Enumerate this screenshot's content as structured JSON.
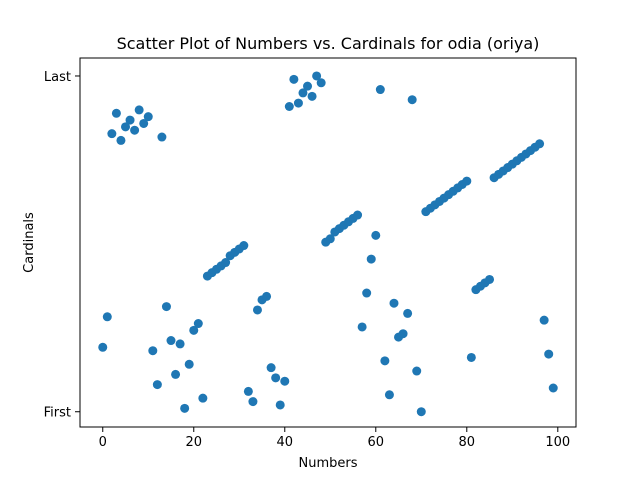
{
  "chart_data": {
    "type": "scatter",
    "title": "Scatter Plot of Numbers vs. Cardinals for odia (oriya)",
    "xlabel": "Numbers",
    "ylabel": "Cardinals",
    "xlim": [
      -5,
      104
    ],
    "ylim": [
      -4.5,
      104.3
    ],
    "x_ticks": [
      0,
      20,
      40,
      60,
      80,
      100
    ],
    "y_ticks": [
      {
        "value": 0,
        "label": "First"
      },
      {
        "value": 99,
        "label": "Last"
      }
    ],
    "grid": false,
    "color": "#1f77b4",
    "points": [
      {
        "x": 0,
        "y": 19
      },
      {
        "x": 1,
        "y": 28
      },
      {
        "x": 2,
        "y": 82
      },
      {
        "x": 3,
        "y": 88
      },
      {
        "x": 4,
        "y": 80
      },
      {
        "x": 5,
        "y": 84
      },
      {
        "x": 6,
        "y": 86
      },
      {
        "x": 7,
        "y": 83
      },
      {
        "x": 8,
        "y": 89
      },
      {
        "x": 9,
        "y": 85
      },
      {
        "x": 10,
        "y": 87
      },
      {
        "x": 11,
        "y": 18
      },
      {
        "x": 12,
        "y": 8
      },
      {
        "x": 13,
        "y": 81
      },
      {
        "x": 14,
        "y": 31
      },
      {
        "x": 15,
        "y": 21
      },
      {
        "x": 16,
        "y": 11
      },
      {
        "x": 17,
        "y": 20
      },
      {
        "x": 18,
        "y": 1
      },
      {
        "x": 19,
        "y": 14
      },
      {
        "x": 20,
        "y": 24
      },
      {
        "x": 21,
        "y": 26
      },
      {
        "x": 22,
        "y": 4
      },
      {
        "x": 23,
        "y": 40
      },
      {
        "x": 24,
        "y": 41
      },
      {
        "x": 25,
        "y": 42
      },
      {
        "x": 26,
        "y": 43
      },
      {
        "x": 27,
        "y": 44
      },
      {
        "x": 28,
        "y": 46
      },
      {
        "x": 29,
        "y": 47
      },
      {
        "x": 30,
        "y": 48
      },
      {
        "x": 31,
        "y": 49
      },
      {
        "x": 32,
        "y": 6
      },
      {
        "x": 33,
        "y": 3
      },
      {
        "x": 34,
        "y": 30
      },
      {
        "x": 35,
        "y": 33
      },
      {
        "x": 36,
        "y": 34
      },
      {
        "x": 37,
        "y": 13
      },
      {
        "x": 38,
        "y": 10
      },
      {
        "x": 39,
        "y": 2
      },
      {
        "x": 40,
        "y": 9
      },
      {
        "x": 41,
        "y": 90
      },
      {
        "x": 42,
        "y": 98
      },
      {
        "x": 43,
        "y": 91
      },
      {
        "x": 44,
        "y": 94
      },
      {
        "x": 45,
        "y": 96
      },
      {
        "x": 46,
        "y": 93
      },
      {
        "x": 47,
        "y": 99
      },
      {
        "x": 48,
        "y": 97
      },
      {
        "x": 49,
        "y": 50
      },
      {
        "x": 50,
        "y": 51
      },
      {
        "x": 51,
        "y": 53
      },
      {
        "x": 52,
        "y": 54
      },
      {
        "x": 53,
        "y": 55
      },
      {
        "x": 54,
        "y": 56
      },
      {
        "x": 55,
        "y": 57
      },
      {
        "x": 56,
        "y": 58
      },
      {
        "x": 57,
        "y": 25
      },
      {
        "x": 58,
        "y": 35
      },
      {
        "x": 59,
        "y": 45
      },
      {
        "x": 60,
        "y": 52
      },
      {
        "x": 61,
        "y": 95
      },
      {
        "x": 62,
        "y": 15
      },
      {
        "x": 63,
        "y": 5
      },
      {
        "x": 64,
        "y": 32
      },
      {
        "x": 65,
        "y": 22
      },
      {
        "x": 66,
        "y": 23
      },
      {
        "x": 67,
        "y": 29
      },
      {
        "x": 68,
        "y": 92
      },
      {
        "x": 69,
        "y": 12
      },
      {
        "x": 70,
        "y": 0
      },
      {
        "x": 71,
        "y": 59
      },
      {
        "x": 72,
        "y": 60
      },
      {
        "x": 73,
        "y": 61
      },
      {
        "x": 74,
        "y": 62
      },
      {
        "x": 75,
        "y": 63
      },
      {
        "x": 76,
        "y": 64
      },
      {
        "x": 77,
        "y": 65
      },
      {
        "x": 78,
        "y": 66
      },
      {
        "x": 79,
        "y": 67
      },
      {
        "x": 80,
        "y": 68
      },
      {
        "x": 81,
        "y": 16
      },
      {
        "x": 82,
        "y": 36
      },
      {
        "x": 83,
        "y": 37
      },
      {
        "x": 84,
        "y": 38
      },
      {
        "x": 85,
        "y": 39
      },
      {
        "x": 86,
        "y": 69
      },
      {
        "x": 87,
        "y": 70
      },
      {
        "x": 88,
        "y": 71
      },
      {
        "x": 89,
        "y": 72
      },
      {
        "x": 90,
        "y": 73
      },
      {
        "x": 91,
        "y": 74
      },
      {
        "x": 92,
        "y": 75
      },
      {
        "x": 93,
        "y": 76
      },
      {
        "x": 94,
        "y": 77
      },
      {
        "x": 95,
        "y": 78
      },
      {
        "x": 96,
        "y": 79
      },
      {
        "x": 97,
        "y": 27
      },
      {
        "x": 98,
        "y": 17
      },
      {
        "x": 99,
        "y": 7
      }
    ]
  }
}
